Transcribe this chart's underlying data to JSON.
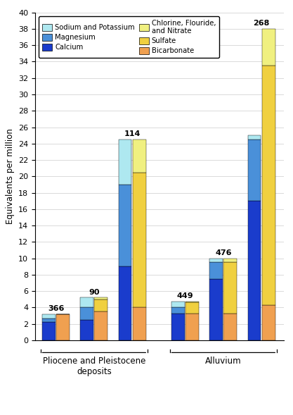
{
  "wells": [
    "366",
    "90",
    "114",
    "449",
    "476",
    "268"
  ],
  "cation_segments": {
    "Calcium": [
      2.2,
      2.5,
      9.0,
      3.3,
      7.5,
      17.0
    ],
    "Magnesium": [
      0.5,
      1.5,
      10.0,
      0.7,
      2.0,
      7.5
    ],
    "Sodium and Potassium": [
      0.5,
      1.2,
      5.5,
      0.7,
      0.5,
      0.5
    ]
  },
  "anion_segments": {
    "Bicarbonate": [
      3.2,
      3.5,
      4.0,
      3.3,
      3.3,
      4.3
    ],
    "Sulfate": [
      0.0,
      1.5,
      16.5,
      1.3,
      6.2,
      29.2
    ],
    "Chlorine, Flouride,\nand Nitrate": [
      0.0,
      0.2,
      4.0,
      0.1,
      0.5,
      4.5
    ]
  },
  "colors": {
    "Calcium": "#1a3ccc",
    "Magnesium": "#4a90d9",
    "Sodium and Potassium": "#aee8f0",
    "Bicarbonate": "#f0a050",
    "Sulfate": "#f0d040",
    "Chlorine, Flouride,\nand Nitrate": "#f0f080"
  },
  "well_labels": [
    "366",
    "90",
    "114",
    "449",
    "476",
    "268"
  ],
  "ylim": [
    0,
    40
  ],
  "yticks": [
    0,
    2,
    4,
    6,
    8,
    10,
    12,
    14,
    16,
    18,
    20,
    22,
    24,
    26,
    28,
    30,
    32,
    34,
    36,
    38,
    40
  ],
  "ylabel": "Equivalents per million",
  "background_color": "#ffffff",
  "grid_color": "#cccccc",
  "group1_label": "Pliocene and Pleistocene\ndeposits",
  "group2_label": "Alluvium",
  "legend_col1": [
    "Sodium and Potassium",
    "Magnesium",
    "Calcium"
  ],
  "legend_col2": [
    "Chlorine, Flouride,\nand Nitrate",
    "Sulfate",
    "Bicarbonate"
  ]
}
